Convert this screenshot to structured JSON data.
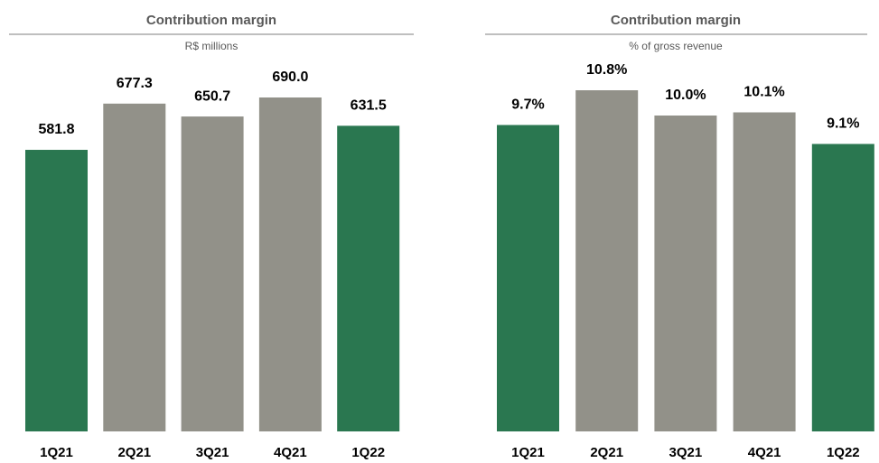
{
  "chart_data": [
    {
      "type": "bar",
      "title": "Contribution margin",
      "subtitle": "R$ millions",
      "categories": [
        "1Q21",
        "2Q21",
        "3Q21",
        "4Q21",
        "1Q22"
      ],
      "values": [
        581.8,
        677.3,
        650.7,
        690.0,
        631.5
      ],
      "value_labels": [
        "581.8",
        "677.3",
        "650.7",
        "690.0",
        "631.5"
      ],
      "colors": [
        "#2a7750",
        "#929189",
        "#929189",
        "#929189",
        "#2a7750"
      ]
    },
    {
      "type": "bar",
      "title": "Contribution margin",
      "subtitle": "% of gross revenue",
      "categories": [
        "1Q21",
        "2Q21",
        "3Q21",
        "4Q21",
        "1Q22"
      ],
      "values": [
        9.7,
        10.8,
        10.0,
        10.1,
        9.1
      ],
      "value_labels": [
        "9.7%",
        "10.8%",
        "10.0%",
        "10.1%",
        "9.1%"
      ],
      "colors": [
        "#2a7750",
        "#929189",
        "#929189",
        "#929189",
        "#2a7750"
      ]
    }
  ]
}
